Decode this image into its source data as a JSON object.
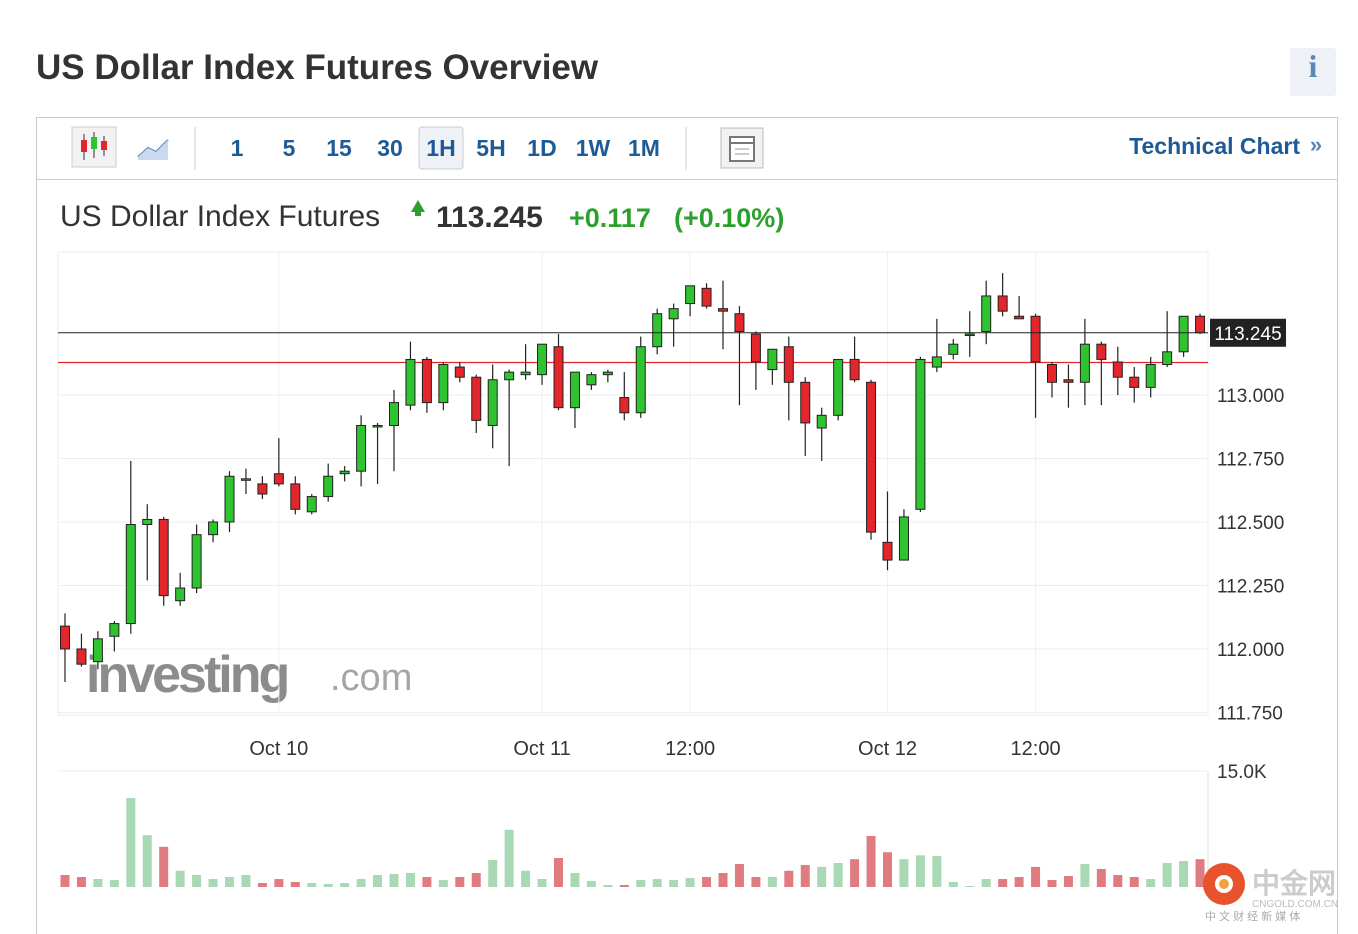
{
  "header": {
    "title": "US Dollar Index Futures Overview",
    "info": "i"
  },
  "toolbar": {
    "intervals": [
      "1",
      "5",
      "15",
      "30",
      "1H",
      "5H",
      "1D",
      "1W",
      "1M"
    ],
    "link": "Technical Chart",
    "link_arrow": "»"
  },
  "quote": {
    "name": "US Dollar Index Futures",
    "change": "+0.117",
    "change_percent": "(+0.10%)"
  },
  "watermark": {
    "brand": "investing",
    "suffix": ".com"
  },
  "logo": {
    "name": "中金网",
    "domain": "CNGOLD.COM.CN",
    "tagline": "中 文 财 经 新 媒 体"
  },
  "chart_data": {
    "type": "candlestick",
    "categories": [
      null,
      null,
      null,
      null,
      null,
      null,
      null,
      null,
      null,
      null,
      null,
      null,
      null,
      "Oct 10",
      null,
      null,
      null,
      null,
      null,
      null,
      null,
      null,
      null,
      null,
      null,
      null,
      null,
      null,
      null,
      "Oct 11",
      null,
      null,
      null,
      null,
      null,
      null,
      null,
      null,
      "12:00",
      null,
      null,
      null,
      null,
      null,
      null,
      null,
      null,
      null,
      null,
      null,
      "Oct 12",
      null,
      null,
      null,
      null,
      null,
      null,
      null,
      null,
      "12:00",
      null,
      null,
      null,
      null,
      null,
      null,
      null,
      null,
      null,
      null
    ],
    "open": [
      112.09,
      112.0,
      111.95,
      112.05,
      112.1,
      112.49,
      112.51,
      112.19,
      112.24,
      112.45,
      112.5,
      112.67,
      112.65,
      112.69,
      112.65,
      112.54,
      112.6,
      112.69,
      112.7,
      112.88,
      112.88,
      112.96,
      113.14,
      112.97,
      113.11,
      113.07,
      112.88,
      113.06,
      113.08,
      113.08,
      113.19,
      112.95,
      113.04,
      113.08,
      112.99,
      112.93,
      113.19,
      113.3,
      113.36,
      113.42,
      113.34,
      113.32,
      113.24,
      113.1,
      113.19,
      113.05,
      112.87,
      112.92,
      113.14,
      113.05,
      112.42,
      112.35,
      112.55,
      113.11,
      113.16,
      113.24,
      113.25,
      113.39,
      113.31,
      113.31,
      113.12,
      113.06,
      113.05,
      113.2,
      113.13,
      113.07,
      113.03,
      113.12,
      113.17,
      113.31
    ],
    "high": [
      112.14,
      112.06,
      112.07,
      112.11,
      112.74,
      112.57,
      112.52,
      112.3,
      112.49,
      112.51,
      112.7,
      112.71,
      112.68,
      112.83,
      112.68,
      112.61,
      112.73,
      112.72,
      112.92,
      112.89,
      113.02,
      113.21,
      113.15,
      113.13,
      113.13,
      113.08,
      113.12,
      113.1,
      113.2,
      113.2,
      113.24,
      113.09,
      113.09,
      113.1,
      113.09,
      113.23,
      113.34,
      113.36,
      113.43,
      113.44,
      113.45,
      113.35,
      113.25,
      113.18,
      113.23,
      113.07,
      112.95,
      113.13,
      113.23,
      113.06,
      112.62,
      112.55,
      113.15,
      113.3,
      113.22,
      113.33,
      113.45,
      113.48,
      113.39,
      113.32,
      113.13,
      113.12,
      113.3,
      113.21,
      113.19,
      113.11,
      113.15,
      113.33,
      113.31,
      113.32
    ],
    "low": [
      111.87,
      111.93,
      111.92,
      111.99,
      112.06,
      112.27,
      112.17,
      112.17,
      112.22,
      112.42,
      112.46,
      112.61,
      112.59,
      112.64,
      112.53,
      112.53,
      112.58,
      112.66,
      112.64,
      112.65,
      112.7,
      112.94,
      112.93,
      112.94,
      113.05,
      112.85,
      112.79,
      112.72,
      113.06,
      113.04,
      112.94,
      112.87,
      113.02,
      113.05,
      112.9,
      112.91,
      113.16,
      113.19,
      113.31,
      113.34,
      113.18,
      112.96,
      113.02,
      113.04,
      112.9,
      112.76,
      112.74,
      112.9,
      113.05,
      112.43,
      112.31,
      112.35,
      112.54,
      113.09,
      113.14,
      113.15,
      113.2,
      113.31,
      113.3,
      112.91,
      112.99,
      112.95,
      112.96,
      112.96,
      113.0,
      112.97,
      112.99,
      113.11,
      113.15,
      113.24
    ],
    "close": [
      112.0,
      111.94,
      112.04,
      112.1,
      112.49,
      112.51,
      112.21,
      112.24,
      112.45,
      112.5,
      112.68,
      112.67,
      112.61,
      112.65,
      112.55,
      112.6,
      112.68,
      112.7,
      112.88,
      112.88,
      112.97,
      113.14,
      112.97,
      113.12,
      113.07,
      112.9,
      113.06,
      113.09,
      113.09,
      113.2,
      112.95,
      113.09,
      113.08,
      113.09,
      112.93,
      113.19,
      113.32,
      113.34,
      113.43,
      113.35,
      113.33,
      113.25,
      113.13,
      113.18,
      113.05,
      112.89,
      112.92,
      113.14,
      113.06,
      112.46,
      112.35,
      112.52,
      113.14,
      113.15,
      113.2,
      113.24,
      113.39,
      113.33,
      113.3,
      113.13,
      113.05,
      113.05,
      113.2,
      113.14,
      113.07,
      113.03,
      113.12,
      113.17,
      113.31,
      113.245
    ],
    "volume": [
      1550,
      1290,
      1030,
      900,
      11500,
      6700,
      5200,
      2100,
      1550,
      1030,
      1290,
      1550,
      520,
      1030,
      650,
      520,
      390,
      520,
      1030,
      1550,
      1680,
      1810,
      1290,
      900,
      1290,
      1810,
      3500,
      7400,
      2100,
      1030,
      3750,
      1810,
      780,
      260,
      260,
      900,
      1030,
      900,
      1160,
      1290,
      1810,
      2970,
      1290,
      1290,
      2100,
      2850,
      2600,
      3100,
      3600,
      6600,
      4500,
      3600,
      4100,
      4000,
      650,
      130,
      1030,
      1030,
      1290,
      2600,
      900,
      1420,
      2970,
      2330,
      1550,
      1290,
      1030,
      3100,
      3360,
      3600
    ],
    "ylim": [
      111.74,
      113.563
    ],
    "yticks": [
      {
        "value": 111.75,
        "label": "111.750"
      },
      {
        "value": 112,
        "label": "112.000"
      },
      {
        "value": 112.25,
        "label": "112.250"
      },
      {
        "value": 112.5,
        "label": "112.500"
      },
      {
        "value": 112.75,
        "label": "112.750"
      },
      {
        "value": 113,
        "label": "113.000"
      }
    ],
    "last_price": 113.245,
    "prev_close": 113.128,
    "volume_lim": [
      0,
      15000
    ],
    "volume_ticks": [
      {
        "value": 15000,
        "label": "15.0K"
      }
    ],
    "up_color": "#2fc32f",
    "down_color": "#e3262b",
    "volume_up_color": "#a8d8b4",
    "volume_down_color": "#e07b80",
    "grid": true
  }
}
